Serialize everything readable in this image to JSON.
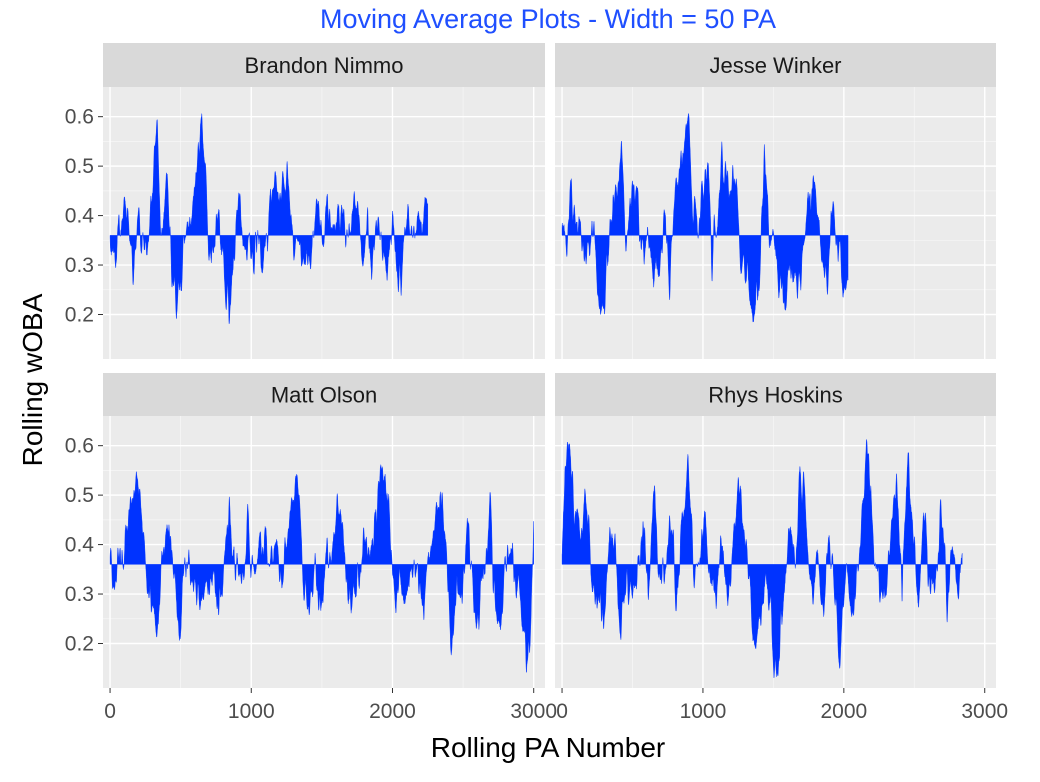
{
  "colors": {
    "accent": "#0033ff",
    "title": "#1f4fff",
    "panel_bg": "#ebebeb",
    "strip_bg": "#d9d9d9",
    "grid_major": "#ffffff"
  },
  "chart_data": {
    "type": "area",
    "title": "Moving Average Plots - Width = 50 PA",
    "xlabel": "Rolling PA Number",
    "ylabel": "Rolling wOBA",
    "baseline": 0.36,
    "xlim": [
      -50,
      3080
    ],
    "ylim": [
      0.11,
      0.66
    ],
    "xticks": [
      0,
      1000,
      2000,
      3000
    ],
    "yticks": [
      0.2,
      0.3,
      0.4,
      0.5,
      0.6
    ],
    "x_tick_labels": [
      "0",
      "1000",
      "2000",
      "3000"
    ],
    "y_tick_labels": [
      "0.2",
      "0.3",
      "0.4",
      "0.5",
      "0.6"
    ],
    "grid": true,
    "facets": [
      {
        "name": "Brandon Nimmo",
        "n": 2250,
        "points": [
          [
            0,
            0.36
          ],
          [
            40,
            0.31
          ],
          [
            80,
            0.4
          ],
          [
            120,
            0.44
          ],
          [
            160,
            0.29
          ],
          [
            200,
            0.4
          ],
          [
            240,
            0.34
          ],
          [
            290,
            0.44
          ],
          [
            330,
            0.57
          ],
          [
            360,
            0.32
          ],
          [
            400,
            0.47
          ],
          [
            430,
            0.3
          ],
          [
            460,
            0.23
          ],
          [
            500,
            0.26
          ],
          [
            540,
            0.4
          ],
          [
            580,
            0.37
          ],
          [
            620,
            0.54
          ],
          [
            650,
            0.56
          ],
          [
            690,
            0.35
          ],
          [
            730,
            0.29
          ],
          [
            760,
            0.41
          ],
          [
            800,
            0.3
          ],
          [
            840,
            0.2
          ],
          [
            880,
            0.35
          ],
          [
            920,
            0.43
          ],
          [
            960,
            0.36
          ],
          [
            1000,
            0.31
          ],
          [
            1040,
            0.38
          ],
          [
            1080,
            0.28
          ],
          [
            1120,
            0.4
          ],
          [
            1160,
            0.48
          ],
          [
            1200,
            0.45
          ],
          [
            1240,
            0.51
          ],
          [
            1270,
            0.42
          ],
          [
            1310,
            0.35
          ],
          [
            1340,
            0.32
          ],
          [
            1380,
            0.31
          ],
          [
            1420,
            0.36
          ],
          [
            1460,
            0.41
          ],
          [
            1500,
            0.37
          ],
          [
            1540,
            0.44
          ],
          [
            1580,
            0.35
          ],
          [
            1620,
            0.39
          ],
          [
            1660,
            0.32
          ],
          [
            1700,
            0.37
          ],
          [
            1740,
            0.44
          ],
          [
            1780,
            0.32
          ],
          [
            1820,
            0.39
          ],
          [
            1850,
            0.25
          ],
          [
            1880,
            0.41
          ],
          [
            1920,
            0.37
          ],
          [
            1960,
            0.31
          ],
          [
            2000,
            0.4
          ],
          [
            2040,
            0.22
          ],
          [
            2070,
            0.32
          ],
          [
            2100,
            0.4
          ],
          [
            2140,
            0.35
          ],
          [
            2180,
            0.41
          ],
          [
            2210,
            0.38
          ],
          [
            2250,
            0.44
          ]
        ]
      },
      {
        "name": "Jesse Winker",
        "n": 2030,
        "points": [
          [
            0,
            0.36
          ],
          [
            30,
            0.33
          ],
          [
            60,
            0.44
          ],
          [
            100,
            0.4
          ],
          [
            140,
            0.34
          ],
          [
            180,
            0.31
          ],
          [
            220,
            0.37
          ],
          [
            260,
            0.19
          ],
          [
            300,
            0.24
          ],
          [
            340,
            0.41
          ],
          [
            380,
            0.45
          ],
          [
            420,
            0.53
          ],
          [
            450,
            0.35
          ],
          [
            490,
            0.43
          ],
          [
            520,
            0.47
          ],
          [
            560,
            0.33
          ],
          [
            600,
            0.39
          ],
          [
            640,
            0.28
          ],
          [
            680,
            0.3
          ],
          [
            720,
            0.38
          ],
          [
            760,
            0.26
          ],
          [
            800,
            0.47
          ],
          [
            850,
            0.52
          ],
          [
            890,
            0.63
          ],
          [
            920,
            0.46
          ],
          [
            960,
            0.36
          ],
          [
            990,
            0.44
          ],
          [
            1030,
            0.55
          ],
          [
            1060,
            0.3
          ],
          [
            1100,
            0.42
          ],
          [
            1140,
            0.5
          ],
          [
            1180,
            0.47
          ],
          [
            1220,
            0.49
          ],
          [
            1260,
            0.33
          ],
          [
            1290,
            0.32
          ],
          [
            1330,
            0.24
          ],
          [
            1360,
            0.18
          ],
          [
            1400,
            0.29
          ],
          [
            1430,
            0.53
          ],
          [
            1470,
            0.36
          ],
          [
            1510,
            0.31
          ],
          [
            1550,
            0.28
          ],
          [
            1580,
            0.22
          ],
          [
            1620,
            0.29
          ],
          [
            1660,
            0.27
          ],
          [
            1700,
            0.33
          ],
          [
            1740,
            0.43
          ],
          [
            1780,
            0.49
          ],
          [
            1810,
            0.41
          ],
          [
            1850,
            0.3
          ],
          [
            1880,
            0.28
          ],
          [
            1920,
            0.45
          ],
          [
            1950,
            0.37
          ],
          [
            1990,
            0.21
          ],
          [
            2030,
            0.3
          ]
        ]
      },
      {
        "name": "Matt Olson",
        "n": 3000,
        "points": [
          [
            0,
            0.36
          ],
          [
            40,
            0.3
          ],
          [
            90,
            0.4
          ],
          [
            130,
            0.45
          ],
          [
            170,
            0.54
          ],
          [
            210,
            0.51
          ],
          [
            250,
            0.33
          ],
          [
            290,
            0.27
          ],
          [
            330,
            0.24
          ],
          [
            370,
            0.4
          ],
          [
            420,
            0.45
          ],
          [
            460,
            0.32
          ],
          [
            490,
            0.21
          ],
          [
            530,
            0.38
          ],
          [
            570,
            0.34
          ],
          [
            610,
            0.27
          ],
          [
            650,
            0.34
          ],
          [
            690,
            0.29
          ],
          [
            730,
            0.31
          ],
          [
            770,
            0.26
          ],
          [
            810,
            0.4
          ],
          [
            850,
            0.44
          ],
          [
            890,
            0.36
          ],
          [
            930,
            0.3
          ],
          [
            970,
            0.43
          ],
          [
            1010,
            0.31
          ],
          [
            1050,
            0.41
          ],
          [
            1090,
            0.39
          ],
          [
            1130,
            0.36
          ],
          [
            1170,
            0.43
          ],
          [
            1210,
            0.3
          ],
          [
            1250,
            0.43
          ],
          [
            1290,
            0.51
          ],
          [
            1330,
            0.53
          ],
          [
            1370,
            0.31
          ],
          [
            1410,
            0.27
          ],
          [
            1450,
            0.33
          ],
          [
            1490,
            0.28
          ],
          [
            1530,
            0.41
          ],
          [
            1570,
            0.36
          ],
          [
            1610,
            0.47
          ],
          [
            1650,
            0.42
          ],
          [
            1690,
            0.24
          ],
          [
            1730,
            0.3
          ],
          [
            1770,
            0.35
          ],
          [
            1810,
            0.44
          ],
          [
            1850,
            0.37
          ],
          [
            1890,
            0.51
          ],
          [
            1930,
            0.56
          ],
          [
            1970,
            0.49
          ],
          [
            2010,
            0.27
          ],
          [
            2050,
            0.31
          ],
          [
            2090,
            0.29
          ],
          [
            2130,
            0.33
          ],
          [
            2170,
            0.38
          ],
          [
            2210,
            0.25
          ],
          [
            2250,
            0.32
          ],
          [
            2290,
            0.43
          ],
          [
            2330,
            0.52
          ],
          [
            2370,
            0.44
          ],
          [
            2410,
            0.18
          ],
          [
            2450,
            0.33
          ],
          [
            2490,
            0.29
          ],
          [
            2530,
            0.46
          ],
          [
            2570,
            0.3
          ],
          [
            2610,
            0.25
          ],
          [
            2650,
            0.37
          ],
          [
            2690,
            0.45
          ],
          [
            2730,
            0.29
          ],
          [
            2770,
            0.26
          ],
          [
            2810,
            0.39
          ],
          [
            2850,
            0.35
          ],
          [
            2890,
            0.31
          ],
          [
            2920,
            0.24
          ],
          [
            2950,
            0.15
          ],
          [
            2975,
            0.2
          ],
          [
            3000,
            0.48
          ]
        ]
      },
      {
        "name": "Rhys Hoskins",
        "n": 2840,
        "points": [
          [
            0,
            0.36
          ],
          [
            20,
            0.58
          ],
          [
            50,
            0.56
          ],
          [
            90,
            0.48
          ],
          [
            130,
            0.42
          ],
          [
            170,
            0.52
          ],
          [
            210,
            0.33
          ],
          [
            250,
            0.3
          ],
          [
            290,
            0.24
          ],
          [
            330,
            0.39
          ],
          [
            370,
            0.44
          ],
          [
            410,
            0.21
          ],
          [
            450,
            0.32
          ],
          [
            490,
            0.28
          ],
          [
            530,
            0.37
          ],
          [
            570,
            0.46
          ],
          [
            610,
            0.3
          ],
          [
            650,
            0.54
          ],
          [
            690,
            0.31
          ],
          [
            730,
            0.37
          ],
          [
            770,
            0.41
          ],
          [
            810,
            0.28
          ],
          [
            850,
            0.45
          ],
          [
            890,
            0.58
          ],
          [
            930,
            0.32
          ],
          [
            970,
            0.36
          ],
          [
            1010,
            0.47
          ],
          [
            1050,
            0.34
          ],
          [
            1090,
            0.3
          ],
          [
            1130,
            0.42
          ],
          [
            1170,
            0.29
          ],
          [
            1210,
            0.37
          ],
          [
            1250,
            0.52
          ],
          [
            1290,
            0.43
          ],
          [
            1330,
            0.3
          ],
          [
            1370,
            0.2
          ],
          [
            1410,
            0.24
          ],
          [
            1450,
            0.33
          ],
          [
            1490,
            0.2
          ],
          [
            1530,
            0.13
          ],
          [
            1570,
            0.3
          ],
          [
            1610,
            0.42
          ],
          [
            1650,
            0.37
          ],
          [
            1690,
            0.54
          ],
          [
            1730,
            0.45
          ],
          [
            1770,
            0.3
          ],
          [
            1810,
            0.35
          ],
          [
            1850,
            0.26
          ],
          [
            1890,
            0.42
          ],
          [
            1930,
            0.31
          ],
          [
            1970,
            0.16
          ],
          [
            2010,
            0.38
          ],
          [
            2050,
            0.25
          ],
          [
            2090,
            0.34
          ],
          [
            2130,
            0.48
          ],
          [
            2170,
            0.61
          ],
          [
            2210,
            0.42
          ],
          [
            2250,
            0.34
          ],
          [
            2290,
            0.24
          ],
          [
            2330,
            0.43
          ],
          [
            2370,
            0.5
          ],
          [
            2410,
            0.27
          ],
          [
            2450,
            0.57
          ],
          [
            2490,
            0.41
          ],
          [
            2530,
            0.3
          ],
          [
            2570,
            0.48
          ],
          [
            2610,
            0.31
          ],
          [
            2650,
            0.35
          ],
          [
            2690,
            0.47
          ],
          [
            2730,
            0.26
          ],
          [
            2770,
            0.41
          ],
          [
            2810,
            0.29
          ],
          [
            2840,
            0.38
          ]
        ]
      }
    ]
  }
}
